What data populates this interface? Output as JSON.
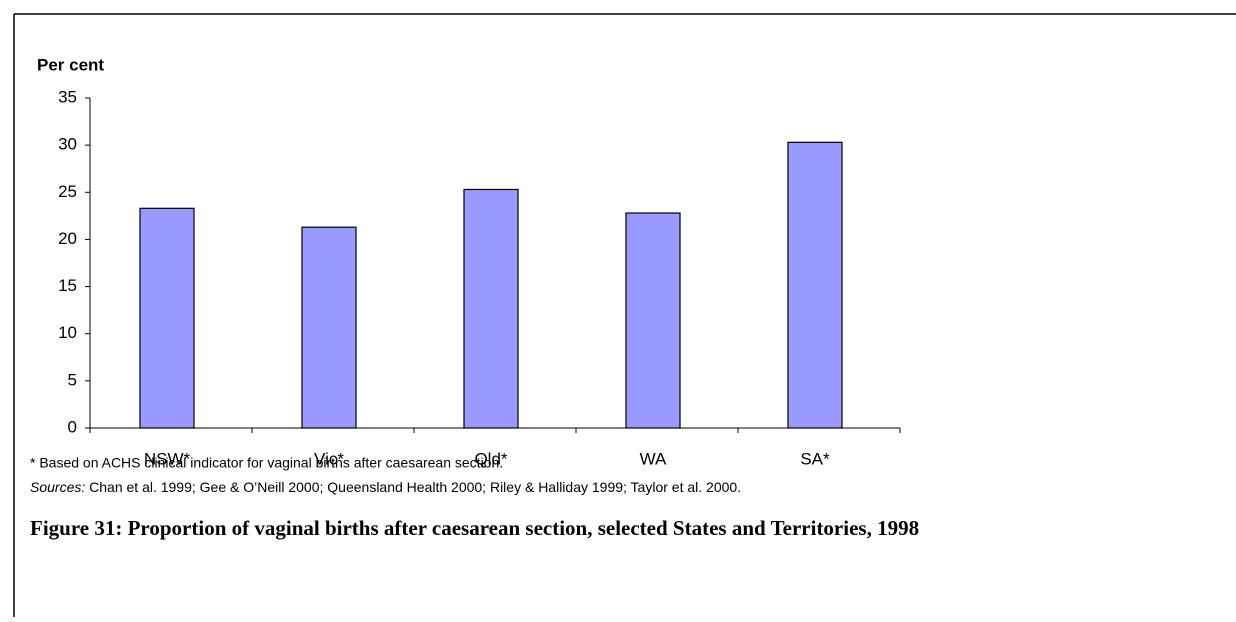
{
  "chart_data": {
    "type": "bar",
    "y_label": "Per cent",
    "categories": [
      "NSW*",
      "Vic*",
      "Qld*",
      "WA",
      "SA*"
    ],
    "values": [
      23.3,
      21.3,
      25.3,
      22.8,
      30.3
    ],
    "color": "#9999ff",
    "ylim": [
      0,
      35
    ],
    "yticks": [
      0,
      5,
      10,
      15,
      20,
      25,
      30,
      35
    ],
    "grid": false,
    "footnote": "* Based on ACHS clinical indicator for vaginal births after caesarean section.",
    "sources_label": "Sources:",
    "sources": " Chan et al. 1999; Gee & O’Neill 2000; Queensland Health 2000; Riley & Halliday 1999; Taylor et al. 2000.",
    "caption": "Figure 31: Proportion of vaginal births after caesarean section, selected States and Territories, 1998"
  }
}
